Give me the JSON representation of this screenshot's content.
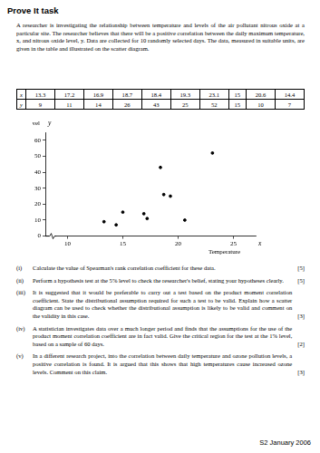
{
  "header": {
    "title": "Prove It task"
  },
  "intro": "A researcher is investigating the relationship between temperature and levels of the air pollutant nitrous oxide at a particular site. The researcher believes that there will be a positive correlation between the daily maximum temperature, x, and nitrous oxide level, y. Data are collected for 10 randomly selected days. The data, measured in suitable units, are given in the table and illustrated on the scatter diagram.",
  "table": {
    "row_labels": [
      "x",
      "y"
    ]
  },
  "chart_data": {
    "type": "scatter",
    "x": [
      13.3,
      17.2,
      16.9,
      18.7,
      18.4,
      19.3,
      23.1,
      15.0,
      20.6,
      14.4
    ],
    "values": [
      9,
      11,
      14,
      26,
      43,
      25,
      52,
      15,
      10,
      7
    ],
    "y_label": "Nitrous oxide level",
    "y_symbol": "y",
    "x_label": "Temperature",
    "x_symbol": "x",
    "xlim": [
      8,
      27
    ],
    "xticks": [
      10,
      15,
      20,
      25
    ],
    "ylim": [
      0,
      65
    ],
    "yticks": [
      0,
      10,
      20,
      30,
      40,
      50,
      60
    ],
    "color": "#000000",
    "marker": "circle",
    "grid": false
  },
  "questions": [
    {
      "number": "(i)",
      "text": "Calculate the value of Spearman's rank correlation coefficient for these data.",
      "marks": "[5]"
    },
    {
      "number": "(ii)",
      "text": "Perform a hypothesis test at the 5% level to check the researcher's belief, stating your hypotheses clearly.",
      "marks": "[5]"
    },
    {
      "number": "(iii)",
      "text": "It is suggested that it would be preferable to carry out a test based on the product moment correlation coefficient. State the distributional assumption required for such a test to be valid. Explain how a scatter diagram can be used to check whether the distributional assumption is likely to be valid and comment on the validity in this case.",
      "marks": "[3]"
    },
    {
      "number": "(iv)",
      "text": "A statistician investigates data over a much longer period and finds that the assumptions for the use of the product moment correlation coefficient are in fact valid. Give the critical region for the test at the 1% level, based on a sample of 60 days.",
      "marks": "[2]"
    },
    {
      "number": "(v)",
      "text": "In a different research project, into the correlation between daily temperature and ozone pollution levels, a positive correlation is found. It is argued that this shows that high temperatures cause increased ozone levels. Comment on this claim.",
      "marks": "[3]"
    }
  ],
  "footer": "S2 January 2006"
}
